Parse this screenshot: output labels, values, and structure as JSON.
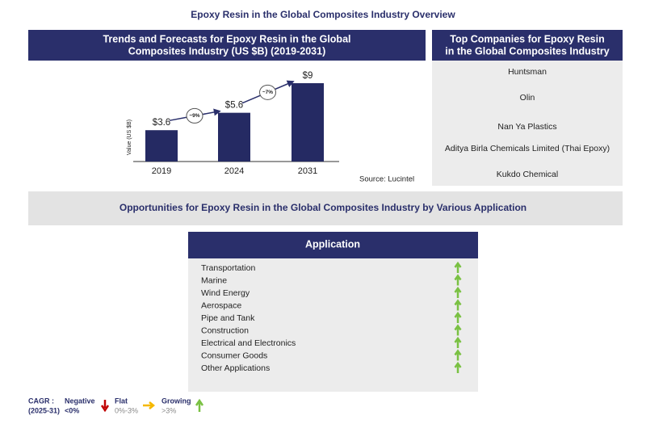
{
  "title": "Epoxy Resin in the Global Composites Industry Overview",
  "chart_data": {
    "type": "bar",
    "title": "Trends and Forecasts for Epoxy Resin in the Global Composites Industry (US $B) (2019-2031)",
    "ylabel": "Value (US $B)",
    "categories": [
      "2019",
      "2024",
      "2031"
    ],
    "values": [
      3.6,
      5.6,
      9
    ],
    "value_labels": [
      "$3.6",
      "$5.6",
      "$9"
    ],
    "color": "#252a63",
    "annotations": [
      "~9%",
      "~7%"
    ],
    "source": "Source: Lucintel"
  },
  "companies": {
    "title": "Top Companies for Epoxy Resin in the Global Composites Industry",
    "items": [
      "Huntsman",
      "Olin",
      "Nan Ya Plastics",
      "Aditya Birla Chemicals Limited (Thai Epoxy)",
      "Kukdo Chemical"
    ]
  },
  "opportunities": {
    "title": "Opportunities for Epoxy Resin in the Global Composites Industry by Various Application",
    "header": "Application",
    "rows": [
      "Transportation",
      "Marine",
      "Wind Energy",
      "Aerospace",
      "Pipe and Tank",
      "Construction",
      "Electrical and Electronics",
      "Consumer Goods",
      "Other Applications"
    ]
  },
  "legend": {
    "label": "CAGR :",
    "period": "(2025-31)",
    "negative": "Negative",
    "negative_range": "<0%",
    "flat": "Flat",
    "flat_range": "0%-3%",
    "growing": "Growing",
    "growing_range": ">3%"
  }
}
